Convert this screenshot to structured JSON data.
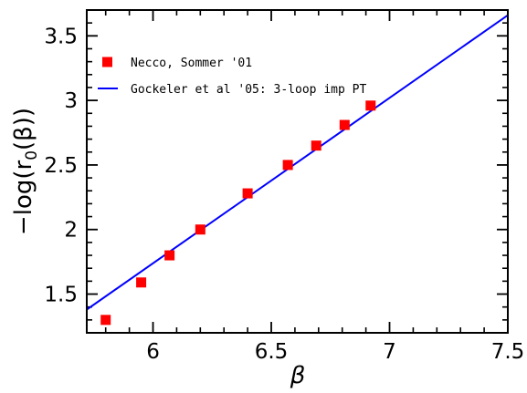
{
  "chart_data": {
    "type": "scatter",
    "xlabel": "β",
    "ylabel": "−log(r0(β))",
    "ylabel_parts": {
      "prefix": "−log(r",
      "subscript": "0",
      "suffix": "(β))"
    },
    "xlim": [
      5.72,
      7.5
    ],
    "ylim": [
      1.2,
      3.7
    ],
    "xticks": {
      "major": [
        6,
        6.5,
        7,
        7.5
      ],
      "labels": [
        "6",
        "6.5",
        "7",
        "7.5"
      ],
      "minor_step": 0.1
    },
    "yticks": {
      "major": [
        1.5,
        2,
        2.5,
        3,
        3.5
      ],
      "labels": [
        "1.5",
        "2",
        "2.5",
        "3",
        "3.5"
      ],
      "minor_step": 0.1
    },
    "grid": false,
    "legend_position": "top-left",
    "series": [
      {
        "name": "Necco, Sommer '01",
        "kind": "points",
        "marker": "square",
        "color": "#ff0000",
        "x": [
          5.8,
          5.95,
          6.07,
          6.2,
          6.4,
          6.57,
          6.69,
          6.81,
          6.92
        ],
        "y": [
          1.3,
          1.59,
          1.8,
          2.0,
          2.28,
          2.5,
          2.65,
          2.81,
          2.96
        ]
      },
      {
        "name": "Gockeler et al '05: 3-loop imp PT",
        "kind": "line",
        "color": "#0000ff",
        "x": [
          5.72,
          7.5
        ],
        "y": [
          1.38,
          3.66
        ]
      }
    ]
  }
}
